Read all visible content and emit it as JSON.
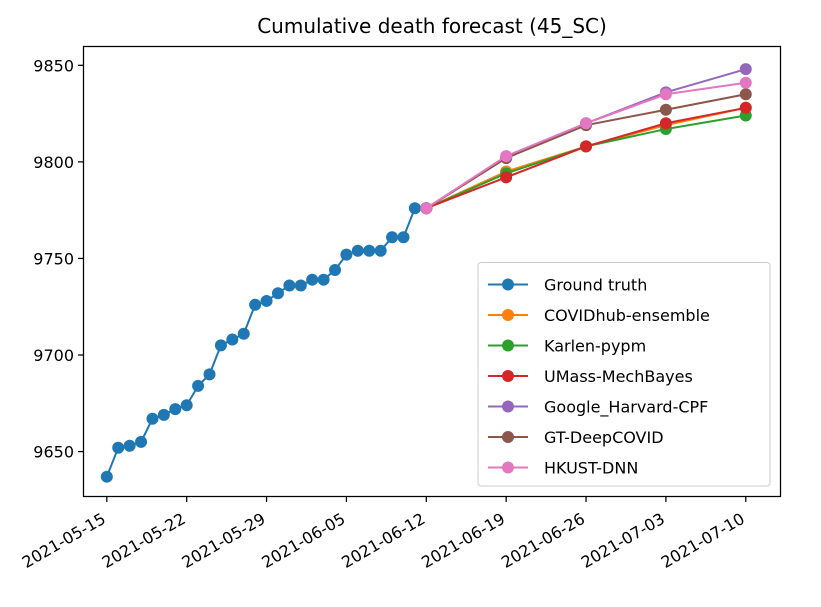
{
  "chart_data": {
    "type": "line",
    "title": "Cumulative death forecast (45_SC)",
    "xlabel": "",
    "ylabel": "",
    "x_ticks": [
      "2021-05-15",
      "2021-05-22",
      "2021-05-29",
      "2021-06-05",
      "2021-06-12",
      "2021-06-19",
      "2021-06-26",
      "2021-07-03",
      "2021-07-10"
    ],
    "y_ticks": [
      9650,
      9700,
      9750,
      9800,
      9850
    ],
    "xlim": [
      "2021-05-13",
      "2021-07-13"
    ],
    "ylim": [
      9627,
      9860
    ],
    "grid": false,
    "legend_position": "lower right",
    "series": [
      {
        "name": "Ground truth",
        "color": "#1f77b4",
        "points": [
          [
            "2021-05-15",
            9637
          ],
          [
            "2021-05-16",
            9652
          ],
          [
            "2021-05-17",
            9653
          ],
          [
            "2021-05-18",
            9655
          ],
          [
            "2021-05-19",
            9667
          ],
          [
            "2021-05-20",
            9669
          ],
          [
            "2021-05-21",
            9672
          ],
          [
            "2021-05-22",
            9674
          ],
          [
            "2021-05-23",
            9684
          ],
          [
            "2021-05-24",
            9690
          ],
          [
            "2021-05-25",
            9705
          ],
          [
            "2021-05-26",
            9708
          ],
          [
            "2021-05-27",
            9711
          ],
          [
            "2021-05-28",
            9726
          ],
          [
            "2021-05-29",
            9728
          ],
          [
            "2021-05-30",
            9732
          ],
          [
            "2021-05-31",
            9736
          ],
          [
            "2021-06-01",
            9736
          ],
          [
            "2021-06-02",
            9739
          ],
          [
            "2021-06-03",
            9739
          ],
          [
            "2021-06-04",
            9744
          ],
          [
            "2021-06-05",
            9752
          ],
          [
            "2021-06-06",
            9754
          ],
          [
            "2021-06-07",
            9754
          ],
          [
            "2021-06-08",
            9754
          ],
          [
            "2021-06-09",
            9761
          ],
          [
            "2021-06-10",
            9761
          ],
          [
            "2021-06-11",
            9776
          ],
          [
            "2021-06-12",
            9776
          ]
        ]
      },
      {
        "name": "COVIDhub-ensemble",
        "color": "#ff7f0e",
        "points": [
          [
            "2021-06-12",
            9776
          ],
          [
            "2021-06-19",
            9795
          ],
          [
            "2021-06-26",
            9808
          ],
          [
            "2021-07-03",
            9819
          ],
          [
            "2021-07-10",
            9828
          ]
        ]
      },
      {
        "name": "Karlen-pypm",
        "color": "#2ca02c",
        "points": [
          [
            "2021-06-12",
            9776
          ],
          [
            "2021-06-19",
            9794
          ],
          [
            "2021-06-26",
            9808
          ],
          [
            "2021-07-03",
            9817
          ],
          [
            "2021-07-10",
            9824
          ]
        ]
      },
      {
        "name": "UMass-MechBayes",
        "color": "#d62728",
        "points": [
          [
            "2021-06-12",
            9776
          ],
          [
            "2021-06-19",
            9792
          ],
          [
            "2021-06-26",
            9808
          ],
          [
            "2021-07-03",
            9820
          ],
          [
            "2021-07-10",
            9828
          ]
        ]
      },
      {
        "name": "Google_Harvard-CPF",
        "color": "#9467bd",
        "points": [
          [
            "2021-06-12",
            9776
          ],
          [
            "2021-06-19",
            9802
          ],
          [
            "2021-06-26",
            9820
          ],
          [
            "2021-07-03",
            9836
          ],
          [
            "2021-07-10",
            9848
          ]
        ]
      },
      {
        "name": "GT-DeepCOVID",
        "color": "#8c564b",
        "points": [
          [
            "2021-06-12",
            9776
          ],
          [
            "2021-06-19",
            9802
          ],
          [
            "2021-06-26",
            9819
          ],
          [
            "2021-07-03",
            9827
          ],
          [
            "2021-07-10",
            9835
          ]
        ]
      },
      {
        "name": "HKUST-DNN",
        "color": "#e377c2",
        "points": [
          [
            "2021-06-12",
            9776
          ],
          [
            "2021-06-19",
            9803
          ],
          [
            "2021-06-26",
            9820
          ],
          [
            "2021-07-03",
            9835
          ],
          [
            "2021-07-10",
            9841
          ]
        ]
      }
    ]
  }
}
